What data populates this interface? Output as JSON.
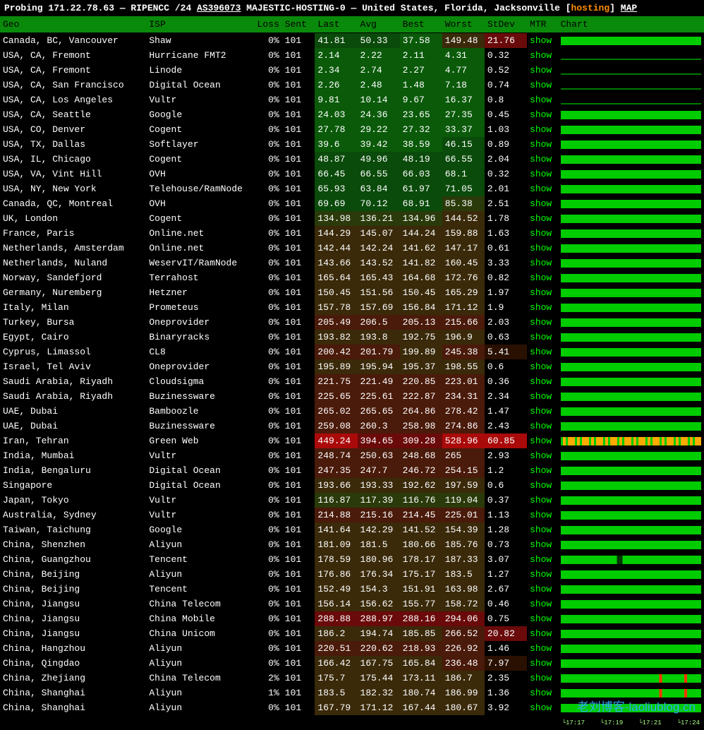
{
  "header": {
    "prefix": "Probing 171.22.78.63 — RIPENCC /24 ",
    "asn": "AS396073",
    "mid": " MAJESTIC-HOSTING-0 — United States, Florida, Jacksonville [",
    "hosting": "hosting",
    "suffix": "] ",
    "map": "MAP"
  },
  "columns": [
    "Geo",
    "ISP",
    "Loss",
    "Sent",
    "Last",
    "Avg",
    "Best",
    "Worst",
    "StDev",
    "MTR",
    "Chart"
  ],
  "mtr_label": "show",
  "latency_heat": {
    "stops": [
      {
        "v": 0,
        "c": "#0a5a0a"
      },
      {
        "v": 40,
        "c": "#0a4a0a"
      },
      {
        "v": 80,
        "c": "#2a3a0a"
      },
      {
        "v": 140,
        "c": "#3a2a0a"
      },
      {
        "v": 200,
        "c": "#4a1a0a"
      },
      {
        "v": 280,
        "c": "#6a0a0a"
      },
      {
        "v": 400,
        "c": "#aa0a0a"
      }
    ]
  },
  "stdev_heat": {
    "stops": [
      {
        "v": 0,
        "c": "#000000"
      },
      {
        "v": 2,
        "c": "#000000"
      },
      {
        "v": 5,
        "c": "#2a1000"
      },
      {
        "v": 20,
        "c": "#6a0a0a"
      },
      {
        "v": 60,
        "c": "#aa0a0a"
      }
    ]
  },
  "chart_colors": {
    "good": "#00cc00",
    "warn": "#ffaa00",
    "bad": "#ff3300",
    "bg": "#003300"
  },
  "time_labels": [
    "17:17",
    "17:19",
    "17:21",
    "17:24"
  ],
  "rows": [
    {
      "geo": "Canada, BC, Vancouver",
      "isp": "Shaw",
      "loss": "0%",
      "sent": 101,
      "last": 41.81,
      "avg": 50.33,
      "best": 37.58,
      "worst": 149.48,
      "stdev": 21.76,
      "chart": "good"
    },
    {
      "geo": "USA, CA, Fremont",
      "isp": "Hurricane FMT2",
      "loss": "0%",
      "sent": 101,
      "last": 2.14,
      "avg": 2.22,
      "best": 2.11,
      "worst": 4.31,
      "stdev": 0.32,
      "chart": "flat-low"
    },
    {
      "geo": "USA, CA, Fremont",
      "isp": "Linode",
      "loss": "0%",
      "sent": 101,
      "last": 2.34,
      "avg": 2.74,
      "best": 2.27,
      "worst": 4.77,
      "stdev": 0.52,
      "chart": "flat-low"
    },
    {
      "geo": "USA, CA, San Francisco",
      "isp": "Digital Ocean",
      "loss": "0%",
      "sent": 101,
      "last": 2.26,
      "avg": 2.48,
      "best": 1.48,
      "worst": 7.18,
      "stdev": 0.74,
      "chart": "flat-low"
    },
    {
      "geo": "USA, CA, Los Angeles",
      "isp": "Vultr",
      "loss": "0%",
      "sent": 101,
      "last": 9.81,
      "avg": 10.14,
      "best": 9.67,
      "worst": 16.37,
      "stdev": 0.8,
      "chart": "flat-low"
    },
    {
      "geo": "USA, CA, Seattle",
      "isp": "Google",
      "loss": "0%",
      "sent": 101,
      "last": 24.03,
      "avg": 24.36,
      "best": 23.65,
      "worst": 27.35,
      "stdev": 0.45,
      "chart": "good"
    },
    {
      "geo": "USA, CO, Denver",
      "isp": "Cogent",
      "loss": "0%",
      "sent": 101,
      "last": 27.78,
      "avg": 29.22,
      "best": 27.32,
      "worst": 33.37,
      "stdev": 1.03,
      "chart": "good"
    },
    {
      "geo": "USA, TX, Dallas",
      "isp": "Softlayer",
      "loss": "0%",
      "sent": 101,
      "last": 39.6,
      "avg": 39.42,
      "best": 38.59,
      "worst": 46.15,
      "stdev": 0.89,
      "chart": "good"
    },
    {
      "geo": "USA, IL, Chicago",
      "isp": "Cogent",
      "loss": "0%",
      "sent": 101,
      "last": 48.87,
      "avg": 49.96,
      "best": 48.19,
      "worst": 66.55,
      "stdev": 2.04,
      "chart": "good"
    },
    {
      "geo": "USA, VA, Vint Hill",
      "isp": "OVH",
      "loss": "0%",
      "sent": 101,
      "last": 66.45,
      "avg": 66.55,
      "best": 66.03,
      "worst": 68.1,
      "stdev": 0.32,
      "chart": "good"
    },
    {
      "geo": "USA, NY, New York",
      "isp": "Telehouse/RamNode",
      "loss": "0%",
      "sent": 101,
      "last": 65.93,
      "avg": 63.84,
      "best": 61.97,
      "worst": 71.05,
      "stdev": 2.01,
      "chart": "good"
    },
    {
      "geo": "Canada, QC, Montreal",
      "isp": "OVH",
      "loss": "0%",
      "sent": 101,
      "last": 69.69,
      "avg": 70.12,
      "best": 68.91,
      "worst": 85.38,
      "stdev": 2.51,
      "chart": "good"
    },
    {
      "geo": "UK, London",
      "isp": "Cogent",
      "loss": "0%",
      "sent": 101,
      "last": 134.98,
      "avg": 136.21,
      "best": 134.96,
      "worst": 144.52,
      "stdev": 1.78,
      "chart": "good"
    },
    {
      "geo": "France, Paris",
      "isp": "Online.net",
      "loss": "0%",
      "sent": 101,
      "last": 144.29,
      "avg": 145.07,
      "best": 144.24,
      "worst": 159.88,
      "stdev": 1.63,
      "chart": "good"
    },
    {
      "geo": "Netherlands, Amsterdam",
      "isp": "Online.net",
      "loss": "0%",
      "sent": 101,
      "last": 142.44,
      "avg": 142.24,
      "best": 141.62,
      "worst": 147.17,
      "stdev": 0.61,
      "chart": "good"
    },
    {
      "geo": "Netherlands, Nuland",
      "isp": "WeservIT/RamNode",
      "loss": "0%",
      "sent": 101,
      "last": 143.66,
      "avg": 143.52,
      "best": 141.82,
      "worst": 160.45,
      "stdev": 3.33,
      "chart": "good"
    },
    {
      "geo": "Norway, Sandefjord",
      "isp": "Terrahost",
      "loss": "0%",
      "sent": 101,
      "last": 165.64,
      "avg": 165.43,
      "best": 164.68,
      "worst": 172.76,
      "stdev": 0.82,
      "chart": "good"
    },
    {
      "geo": "Germany, Nuremberg",
      "isp": "Hetzner",
      "loss": "0%",
      "sent": 101,
      "last": 150.45,
      "avg": 151.56,
      "best": 150.45,
      "worst": 165.29,
      "stdev": 1.97,
      "chart": "good"
    },
    {
      "geo": "Italy, Milan",
      "isp": "Prometeus",
      "loss": "0%",
      "sent": 101,
      "last": 157.78,
      "avg": 157.69,
      "best": 156.84,
      "worst": 171.12,
      "stdev": 1.9,
      "chart": "good"
    },
    {
      "geo": "Turkey, Bursa",
      "isp": "Oneprovider",
      "loss": "0%",
      "sent": 101,
      "last": 205.49,
      "avg": 206.5,
      "best": 205.13,
      "worst": 215.66,
      "stdev": 2.03,
      "chart": "good"
    },
    {
      "geo": "Egypt, Cairo",
      "isp": "Binaryracks",
      "loss": "0%",
      "sent": 101,
      "last": 193.82,
      "avg": 193.8,
      "best": 192.75,
      "worst": 196.9,
      "stdev": 0.63,
      "chart": "good"
    },
    {
      "geo": "Cyprus, Limassol",
      "isp": "CL8",
      "loss": "0%",
      "sent": 101,
      "last": 200.42,
      "avg": 201.79,
      "best": 199.89,
      "worst": 245.38,
      "stdev": 5.41,
      "chart": "good"
    },
    {
      "geo": "Israel, Tel Aviv",
      "isp": "Oneprovider",
      "loss": "0%",
      "sent": 101,
      "last": 195.89,
      "avg": 195.94,
      "best": 195.37,
      "worst": 198.55,
      "stdev": 0.6,
      "chart": "good"
    },
    {
      "geo": "Saudi Arabia, Riyadh",
      "isp": "Cloudsigma",
      "loss": "0%",
      "sent": 101,
      "last": 221.75,
      "avg": 221.49,
      "best": 220.85,
      "worst": 223.01,
      "stdev": 0.36,
      "chart": "good"
    },
    {
      "geo": "Saudi Arabia, Riyadh",
      "isp": "Buzinessware",
      "loss": "0%",
      "sent": 101,
      "last": 225.65,
      "avg": 225.61,
      "best": 222.87,
      "worst": 234.31,
      "stdev": 2.34,
      "chart": "good"
    },
    {
      "geo": "UAE, Dubai",
      "isp": "Bamboozle",
      "loss": "0%",
      "sent": 101,
      "last": 265.02,
      "avg": 265.65,
      "best": 264.86,
      "worst": 278.42,
      "stdev": 1.47,
      "chart": "good"
    },
    {
      "geo": "UAE, Dubai",
      "isp": "Buzinessware",
      "loss": "0%",
      "sent": 101,
      "last": 259.08,
      "avg": 260.3,
      "best": 258.98,
      "worst": 274.86,
      "stdev": 2.43,
      "chart": "good"
    },
    {
      "geo": "Iran, Tehran",
      "isp": "Green Web",
      "loss": "0%",
      "sent": 101,
      "last": 449.24,
      "avg": 394.65,
      "best": 309.28,
      "worst": 528.96,
      "stdev": 60.85,
      "chart": "mixed"
    },
    {
      "geo": "India, Mumbai",
      "isp": "Vultr",
      "loss": "0%",
      "sent": 101,
      "last": 248.74,
      "avg": 250.63,
      "best": 248.68,
      "worst": 265,
      "stdev": 2.93,
      "chart": "good"
    },
    {
      "geo": "India, Bengaluru",
      "isp": "Digital Ocean",
      "loss": "0%",
      "sent": 101,
      "last": 247.35,
      "avg": 247.7,
      "best": 246.72,
      "worst": 254.15,
      "stdev": 1.2,
      "chart": "good"
    },
    {
      "geo": "Singapore",
      "isp": "Digital Ocean",
      "loss": "0%",
      "sent": 101,
      "last": 193.66,
      "avg": 193.33,
      "best": 192.62,
      "worst": 197.59,
      "stdev": 0.6,
      "chart": "good"
    },
    {
      "geo": "Japan, Tokyo",
      "isp": "Vultr",
      "loss": "0%",
      "sent": 101,
      "last": 116.87,
      "avg": 117.39,
      "best": 116.76,
      "worst": 119.04,
      "stdev": 0.37,
      "chart": "good"
    },
    {
      "geo": "Australia, Sydney",
      "isp": "Vultr",
      "loss": "0%",
      "sent": 101,
      "last": 214.88,
      "avg": 215.16,
      "best": 214.45,
      "worst": 225.01,
      "stdev": 1.13,
      "chart": "good"
    },
    {
      "geo": "Taiwan, Taichung",
      "isp": "Google",
      "loss": "0%",
      "sent": 101,
      "last": 141.64,
      "avg": 142.29,
      "best": 141.52,
      "worst": 154.39,
      "stdev": 1.28,
      "chart": "good"
    },
    {
      "geo": "China, Shenzhen",
      "isp": "Aliyun",
      "loss": "0%",
      "sent": 101,
      "last": 181.09,
      "avg": 181.5,
      "best": 180.66,
      "worst": 185.76,
      "stdev": 0.73,
      "chart": "good"
    },
    {
      "geo": "China, Guangzhou",
      "isp": "Tencent",
      "loss": "0%",
      "sent": 101,
      "last": 178.59,
      "avg": 180.96,
      "best": 178.17,
      "worst": 187.33,
      "stdev": 3.07,
      "chart": "good-gap"
    },
    {
      "geo": "China, Beijing",
      "isp": "Aliyun",
      "loss": "0%",
      "sent": 101,
      "last": 176.86,
      "avg": 176.34,
      "best": 175.17,
      "worst": 183.5,
      "stdev": 1.27,
      "chart": "good"
    },
    {
      "geo": "China, Beijing",
      "isp": "Tencent",
      "loss": "0%",
      "sent": 101,
      "last": 152.49,
      "avg": 154.3,
      "best": 151.91,
      "worst": 163.98,
      "stdev": 2.67,
      "chart": "good"
    },
    {
      "geo": "China, Jiangsu",
      "isp": "China Telecom",
      "loss": "0%",
      "sent": 101,
      "last": 156.14,
      "avg": 156.62,
      "best": 155.77,
      "worst": 158.72,
      "stdev": 0.46,
      "chart": "good"
    },
    {
      "geo": "China, Jiangsu",
      "isp": "China Mobile",
      "loss": "0%",
      "sent": 101,
      "last": 288.88,
      "avg": 288.97,
      "best": 288.16,
      "worst": 294.06,
      "stdev": 0.75,
      "chart": "good"
    },
    {
      "geo": "China, Jiangsu",
      "isp": "China Unicom",
      "loss": "0%",
      "sent": 101,
      "last": 186.2,
      "avg": 194.74,
      "best": 185.85,
      "worst": 266.52,
      "stdev": 20.82,
      "chart": "good"
    },
    {
      "geo": "China, Hangzhou",
      "isp": "Aliyun",
      "loss": "0%",
      "sent": 101,
      "last": 220.51,
      "avg": 220.62,
      "best": 218.93,
      "worst": 226.92,
      "stdev": 1.46,
      "chart": "good"
    },
    {
      "geo": "China, Qingdao",
      "isp": "Aliyun",
      "loss": "0%",
      "sent": 101,
      "last": 166.42,
      "avg": 167.75,
      "best": 165.84,
      "worst": 236.48,
      "stdev": 7.97,
      "chart": "good"
    },
    {
      "geo": "China, Zhejiang",
      "isp": "China Telecom",
      "loss": "2%",
      "sent": 101,
      "last": 175.7,
      "avg": 175.44,
      "best": 173.11,
      "worst": 186.7,
      "stdev": 2.35,
      "chart": "good-loss"
    },
    {
      "geo": "China, Shanghai",
      "isp": "Aliyun",
      "loss": "1%",
      "sent": 101,
      "last": 183.5,
      "avg": 182.32,
      "best": 180.74,
      "worst": 186.99,
      "stdev": 1.36,
      "chart": "good-loss"
    },
    {
      "geo": "China, Shanghai",
      "isp": "Aliyun",
      "loss": "0%",
      "sent": 101,
      "last": 167.79,
      "avg": 171.12,
      "best": 167.44,
      "worst": 180.67,
      "stdev": 3.92,
      "chart": "good"
    }
  ],
  "watermark": "老刘博客-laoliublog.cn"
}
